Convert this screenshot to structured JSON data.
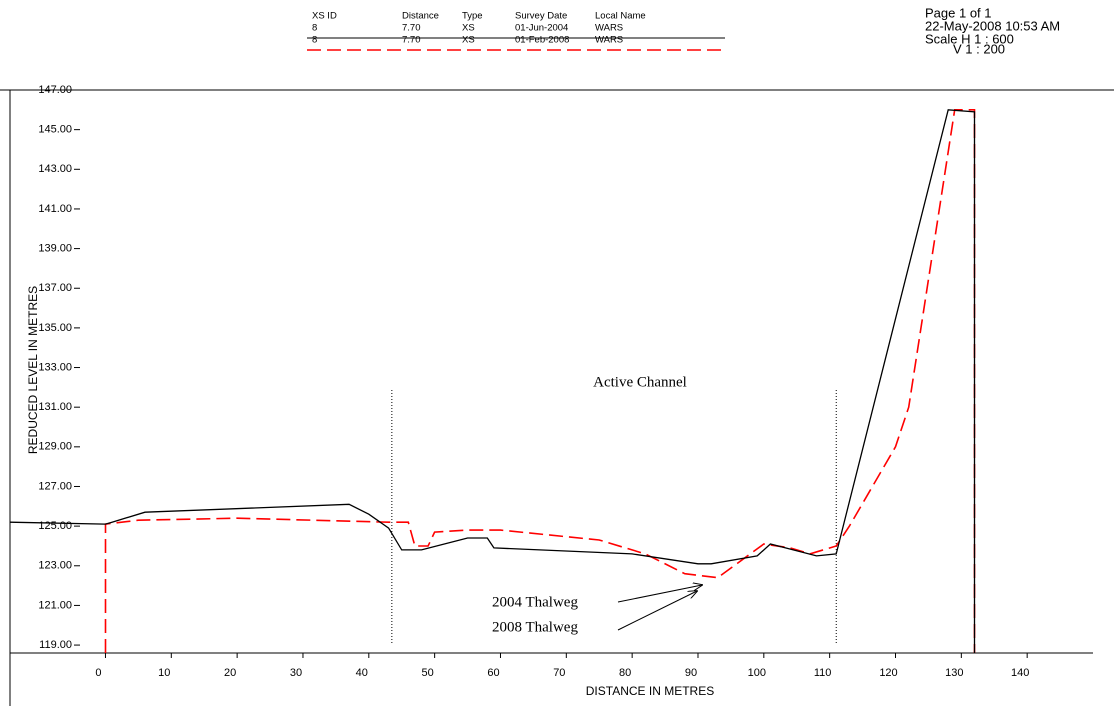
{
  "chart_data": {
    "type": "line",
    "x_label": "DISTANCE IN METRES",
    "y_label": "REDUCED LEVEL IN METRES",
    "legend_table": {
      "columns": [
        "XS ID",
        "Distance",
        "Type",
        "Survey Date",
        "Local Name"
      ],
      "rows": [
        [
          "8",
          "7.70",
          "XS",
          "01-Jun-2004",
          "WARS"
        ],
        [
          "8",
          "7.70",
          "XS",
          "01-Feb-2008",
          "WARS"
        ]
      ]
    },
    "page_info": [
      "Page 1 of 1",
      "22-May-2008 10:53 AM",
      "Scale H 1 : 600",
      "V 1 : 200"
    ],
    "annotations": [
      "Active Channel",
      "2004 Thalweg",
      "2008 Thalweg"
    ],
    "channel_bounds": [
      43.5,
      111
    ],
    "xlim": [
      -14.5,
      150
    ],
    "xticks": [
      0,
      10,
      20,
      30,
      40,
      50,
      60,
      70,
      80,
      90,
      100,
      110,
      120,
      130,
      140
    ],
    "ylim": [
      118.6,
      147
    ],
    "yticks": [
      {
        "value": 119,
        "label": "119.00"
      },
      {
        "value": 121,
        "label": "121.00"
      },
      {
        "value": 123,
        "label": "123.00"
      },
      {
        "value": 125,
        "label": "125.00"
      },
      {
        "value": 127,
        "label": "127.00"
      },
      {
        "value": 129,
        "label": "129.00"
      },
      {
        "value": 131,
        "label": "131.00"
      },
      {
        "value": 133,
        "label": "133.00"
      },
      {
        "value": 135,
        "label": "135.00"
      },
      {
        "value": 137,
        "label": "137.00"
      },
      {
        "value": 139,
        "label": "139.00"
      },
      {
        "value": 141,
        "label": "141.00"
      },
      {
        "value": 143,
        "label": "143.00"
      },
      {
        "value": 145,
        "label": "145.00"
      },
      {
        "value": 147,
        "label": "147.00"
      }
    ],
    "series": [
      {
        "color": "#000000",
        "dashed": false,
        "x": [
          -14.5,
          0,
          1,
          6,
          37,
          40,
          43,
          45,
          48,
          55,
          58,
          59,
          80,
          90,
          92,
          99,
          101,
          108,
          111,
          128,
          132,
          132
        ],
        "values": [
          125.2,
          125.1,
          125.2,
          125.7,
          126.1,
          125.6,
          124.9,
          123.8,
          123.8,
          124.4,
          124.4,
          123.9,
          123.6,
          123.1,
          123.1,
          123.5,
          124.1,
          123.5,
          123.6,
          146.0,
          145.9,
          118.6
        ]
      },
      {
        "color": "#ff0000",
        "dashed": true,
        "x": [
          0,
          0,
          5,
          20,
          43,
          46,
          47,
          49,
          50,
          55,
          60,
          75,
          82,
          88,
          93,
          100,
          104,
          107,
          111,
          113,
          120,
          122,
          129,
          132,
          132
        ],
        "values": [
          118.6,
          125.1,
          125.3,
          125.4,
          125.2,
          125.2,
          124.0,
          124.0,
          124.7,
          124.8,
          124.8,
          124.3,
          123.6,
          122.6,
          122.4,
          124.1,
          123.9,
          123.6,
          124.0,
          125.0,
          129.0,
          131.0,
          146.0,
          146.0,
          118.6
        ]
      }
    ]
  }
}
